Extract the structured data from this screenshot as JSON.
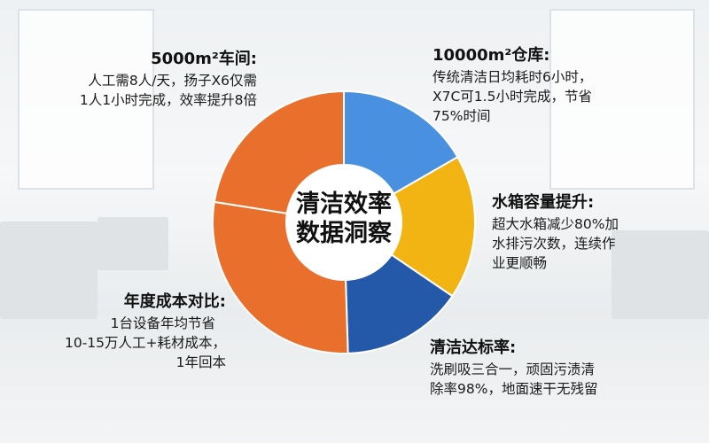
{
  "chart_data": {
    "type": "pie",
    "variant": "donut",
    "title": "清洁效率数据洞察",
    "legend": "none",
    "grid": false,
    "segments": [
      {
        "label": "10000m²仓库",
        "share_pct": 16.7,
        "color": "#4a90e0"
      },
      {
        "label": "水箱容量提升",
        "share_pct": 17.8,
        "color": "#f2b413"
      },
      {
        "label": "清洁达标率",
        "share_pct": 15.0,
        "color": "#2458a8"
      },
      {
        "label": "年度成本对比",
        "share_pct": 28.0,
        "color": "#e8702c"
      },
      {
        "label": "5000m²车间",
        "share_pct": 22.5,
        "color": "#e8702c"
      }
    ]
  },
  "center_title": [
    "清洁效率",
    "数据洞察"
  ],
  "annotations": {
    "workshop": {
      "title": "5000m²车间:",
      "lines": [
        "人工需8人/天，扬子X6仅需",
        "1人1小时完成，效率提升8倍"
      ]
    },
    "warehouse": {
      "title": "10000m²仓库:",
      "lines": [
        "传统清洁日均耗时6小时，",
        "X7C可1.5小时完成，节省",
        "75%时间"
      ]
    },
    "tank": {
      "title": "水箱容量提升:",
      "lines": [
        "超大水箱减少80%加",
        "水排污次数，连续作",
        "业更顺畅"
      ]
    },
    "standard": {
      "title": "清洁达标率:",
      "lines": [
        "洗刷吸三合一，顽固污渍清",
        "除率98%，地面速干无残留"
      ]
    },
    "cost": {
      "title": "年度成本对比:",
      "lines": [
        "1台设备年均节省",
        "10-15万人工+耗材成本，",
        "1年回本"
      ]
    }
  }
}
